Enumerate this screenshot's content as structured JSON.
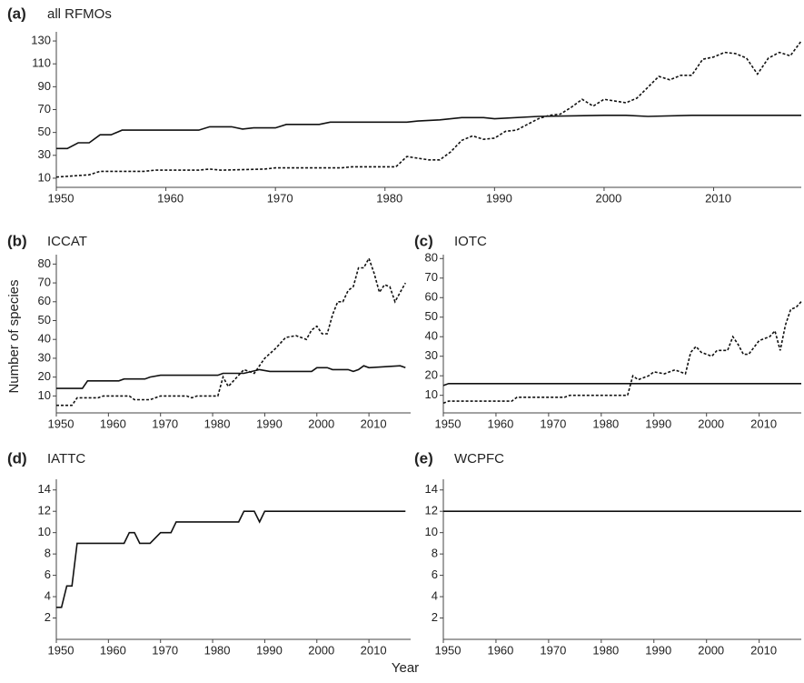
{
  "ylabel": "Number of species",
  "xlabel": "Year",
  "chart_data": [
    {
      "type": "line",
      "panel": "(a)",
      "title": "all RFMOs",
      "xlim": [
        1950,
        2018
      ],
      "ylim": [
        2,
        138
      ],
      "xticks": [
        1950,
        1960,
        1970,
        1980,
        1990,
        2000,
        2010
      ],
      "yticks": [
        10,
        30,
        50,
        70,
        90,
        110,
        130
      ],
      "series": [
        {
          "style": "solid",
          "x": [
            1950,
            1951,
            1952,
            1953,
            1954,
            1955,
            1956,
            1963,
            1964,
            1966,
            1967,
            1968,
            1970,
            1971,
            1974,
            1975,
            1982,
            1983,
            1985,
            1987,
            1989,
            1990,
            1994,
            2000,
            2002,
            2004,
            2008,
            2018
          ],
          "values": [
            36,
            36,
            41,
            41,
            48,
            48,
            52,
            52,
            55,
            55,
            53,
            54,
            54,
            57,
            57,
            59,
            59,
            60,
            61,
            63,
            63,
            62,
            64,
            65,
            65,
            64,
            65,
            65
          ]
        },
        {
          "style": "dotted",
          "x": [
            1950,
            1953,
            1954,
            1958,
            1959,
            1963,
            1964,
            1965,
            1969,
            1970,
            1976,
            1977,
            1981,
            1982,
            1984,
            1985,
            1986,
            1987,
            1988,
            1989,
            1990,
            1991,
            1992,
            1993,
            1994,
            1995,
            1996,
            1997,
            1998,
            1999,
            2000,
            2002,
            2003,
            2005,
            2006,
            2007,
            2008,
            2009,
            2010,
            2011,
            2012,
            2013,
            2014,
            2015,
            2016,
            2017,
            2018
          ],
          "values": [
            11,
            13,
            16,
            16,
            17,
            17,
            18,
            17,
            18,
            19,
            19,
            20,
            20,
            29,
            26,
            26,
            33,
            43,
            47,
            44,
            45,
            51,
            52,
            57,
            62,
            65,
            66,
            72,
            79,
            73,
            79,
            76,
            80,
            99,
            96,
            100,
            100,
            114,
            116,
            120,
            119,
            115,
            101,
            115,
            120,
            117,
            130
          ]
        }
      ]
    },
    {
      "type": "line",
      "panel": "(b)",
      "title": "ICCAT",
      "xlim": [
        1950,
        2018
      ],
      "ylim": [
        1,
        85
      ],
      "xticks": [
        1950,
        1960,
        1970,
        1980,
        1990,
        2000,
        2010
      ],
      "yticks": [
        10,
        20,
        30,
        40,
        50,
        60,
        70,
        80
      ],
      "series": [
        {
          "style": "solid",
          "x": [
            1950,
            1955,
            1956,
            1962,
            1963,
            1967,
            1968,
            1970,
            1981,
            1982,
            1986,
            1989,
            1991,
            1992,
            1999,
            2000,
            2002,
            2003,
            2006,
            2007,
            2008,
            2009,
            2010,
            2016,
            2017
          ],
          "values": [
            14,
            14,
            18,
            18,
            19,
            19,
            20,
            21,
            21,
            22,
            22,
            24,
            23,
            23,
            23,
            25,
            25,
            24,
            24,
            23,
            24,
            26,
            25,
            26,
            25
          ]
        },
        {
          "style": "dotted",
          "x": [
            1950,
            1953,
            1954,
            1958,
            1959,
            1964,
            1965,
            1968,
            1970,
            1975,
            1976,
            1977,
            1981,
            1982,
            1983,
            1984,
            1986,
            1988,
            1990,
            1992,
            1994,
            1996,
            1997,
            1998,
            1999,
            2000,
            2001,
            2002,
            2003,
            2004,
            2005,
            2006,
            2007,
            2008,
            2009,
            2010,
            2011,
            2012,
            2013,
            2014,
            2015,
            2016,
            2017
          ],
          "values": [
            5,
            5,
            9,
            9,
            10,
            10,
            8,
            8,
            10,
            10,
            9,
            10,
            10,
            20,
            15,
            18,
            24,
            22,
            30,
            35,
            41,
            42,
            41,
            40,
            45,
            47,
            43,
            43,
            53,
            60,
            60,
            66,
            68,
            78,
            78,
            83,
            75,
            65,
            69,
            68,
            60,
            65,
            70
          ]
        }
      ]
    },
    {
      "type": "line",
      "panel": "(c)",
      "title": "IOTC",
      "xlim": [
        1950,
        2018
      ],
      "ylim": [
        1,
        82
      ],
      "xticks": [
        1950,
        1960,
        1970,
        1980,
        1990,
        2000,
        2010
      ],
      "yticks": [
        10,
        20,
        30,
        40,
        50,
        60,
        70,
        80
      ],
      "series": [
        {
          "style": "solid",
          "x": [
            1950,
            1951,
            2018
          ],
          "values": [
            15,
            16,
            16
          ]
        },
        {
          "style": "dotted",
          "x": [
            1950,
            1951,
            1963,
            1964,
            1973,
            1974,
            1985,
            1986,
            1987,
            1989,
            1990,
            1992,
            1994,
            1996,
            1997,
            1998,
            1999,
            2001,
            2002,
            2004,
            2005,
            2006,
            2007,
            2008,
            2010,
            2012,
            2013,
            2014,
            2015,
            2016,
            2017,
            2018
          ],
          "values": [
            6,
            7,
            7,
            9,
            9,
            10,
            10,
            20,
            18,
            20,
            22,
            21,
            23,
            21,
            32,
            35,
            32,
            30,
            33,
            33,
            40,
            36,
            31,
            31,
            38,
            40,
            43,
            33,
            46,
            54,
            55,
            58
          ]
        }
      ]
    },
    {
      "type": "line",
      "panel": "(d)",
      "title": "IATTC",
      "xlim": [
        1950,
        2018
      ],
      "ylim": [
        0,
        15
      ],
      "xticks": [
        1950,
        1960,
        1970,
        1980,
        1990,
        2000,
        2010
      ],
      "yticks": [
        2,
        4,
        6,
        8,
        10,
        12,
        14
      ],
      "series": [
        {
          "style": "solid",
          "x": [
            1950,
            1951,
            1952,
            1953,
            1954,
            1963,
            1964,
            1965,
            1966,
            1968,
            1970,
            1972,
            1973,
            1975,
            1985,
            1986,
            1988,
            1989,
            1990,
            2017
          ],
          "values": [
            3,
            3,
            5,
            5,
            9,
            9,
            10,
            10,
            9,
            9,
            10,
            10,
            11,
            11,
            11,
            12,
            12,
            11,
            12,
            12
          ]
        }
      ]
    },
    {
      "type": "line",
      "panel": "(e)",
      "title": "WCPFC",
      "xlim": [
        1950,
        2018
      ],
      "ylim": [
        0,
        15
      ],
      "xticks": [
        1950,
        1960,
        1970,
        1980,
        1990,
        2000,
        2010
      ],
      "yticks": [
        2,
        4,
        6,
        8,
        10,
        12,
        14
      ],
      "series": [
        {
          "style": "solid",
          "x": [
            1950,
            2018
          ],
          "values": [
            12,
            12
          ]
        }
      ]
    }
  ]
}
